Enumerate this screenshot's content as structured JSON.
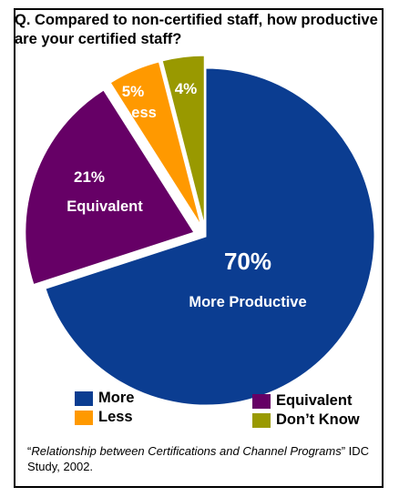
{
  "question": "Q. Compared to non-certified staff, how productive are your certified staff?",
  "chart_data": {
    "type": "pie",
    "slices": [
      {
        "name": "More",
        "value": 70,
        "label_pct": "70%",
        "label_text": "More Productive",
        "color": "#0b3d91",
        "exploded": false
      },
      {
        "name": "Equivalent",
        "value": 21,
        "label_pct": "21%",
        "label_text": "Equivalent",
        "color": "#660066",
        "exploded": true
      },
      {
        "name": "Less",
        "value": 5,
        "label_pct": "5%",
        "label_text": "Less",
        "color": "#ff9900",
        "exploded": true
      },
      {
        "name": "Don't Know",
        "value": 4,
        "label_pct": "4%",
        "label_text": "",
        "color": "#999900",
        "exploded": true
      }
    ],
    "legend": {
      "position": "bottom",
      "items": [
        {
          "label": "More",
          "color": "#0b3d91"
        },
        {
          "label": "Equivalent",
          "color": "#660066"
        },
        {
          "label": "Less",
          "color": "#ff9900"
        },
        {
          "label": "Don’t Know",
          "color": "#999900"
        }
      ]
    }
  },
  "source": {
    "open_quote": "“",
    "title": "Relationship between Certifications and Channel Programs",
    "close_quote": "”",
    "rest": "  IDC Study, 2002."
  }
}
